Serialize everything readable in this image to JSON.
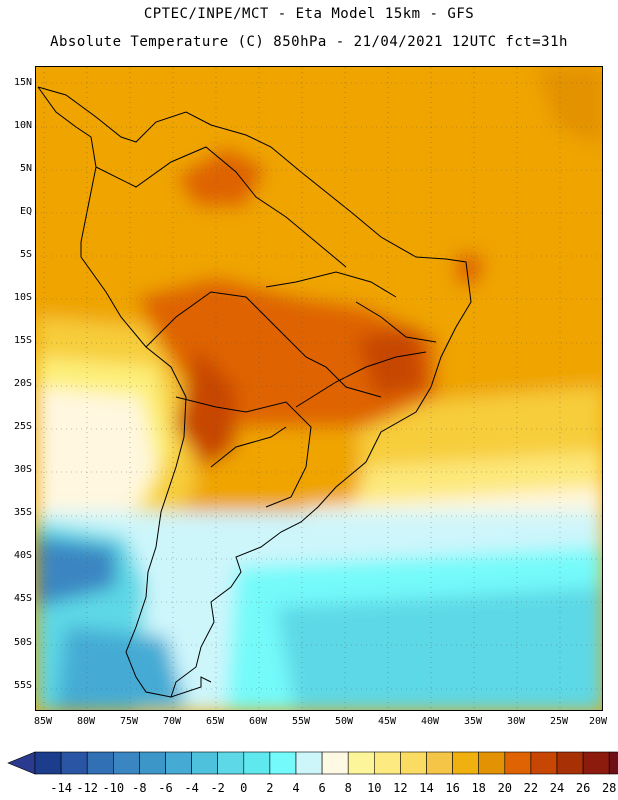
{
  "header": {
    "line1": "CPTEC/INPE/MCT -  Eta Model 15km - GFS",
    "line2": "Absolute Temperature (C) 850hPa - 21/04/2021 12UTC fct=31h"
  },
  "map": {
    "region": "South America",
    "lat_labels": [
      "15N",
      "10N",
      "5N",
      "EQ",
      "5S",
      "10S",
      "15S",
      "20S",
      "25S",
      "30S",
      "35S",
      "40S",
      "45S",
      "50S",
      "55S"
    ],
    "lon_labels": [
      "85W",
      "80W",
      "75W",
      "70W",
      "65W",
      "60W",
      "55W",
      "50W",
      "45W",
      "40W",
      "35W",
      "30W",
      "25W",
      "20W"
    ],
    "grid": "dotted"
  },
  "colorbar": {
    "labels": [
      "-14",
      "-12",
      "-10",
      "-8",
      "-6",
      "-4",
      "-2",
      "0",
      "2",
      "4",
      "6",
      "8",
      "10",
      "12",
      "14",
      "16",
      "18",
      "20",
      "22",
      "24",
      "26",
      "28"
    ],
    "colors": [
      "#1c3c8c",
      "#2a55a4",
      "#3170b4",
      "#3a86c2",
      "#3c97c8",
      "#45abd4",
      "#4ec2dd",
      "#5dd8e6",
      "#60e8ef",
      "#74fafa",
      "#cdf6fb",
      "#fdf9e3",
      "#fdf59a",
      "#fdea80",
      "#fbdc63",
      "#f4c546",
      "#f0b110",
      "#e39204",
      "#df6303",
      "#c84604",
      "#a83005",
      "#8c1b0d",
      "#6e0f18"
    ],
    "end_low": "#2a3a8f",
    "end_high": "#6e0028"
  }
}
